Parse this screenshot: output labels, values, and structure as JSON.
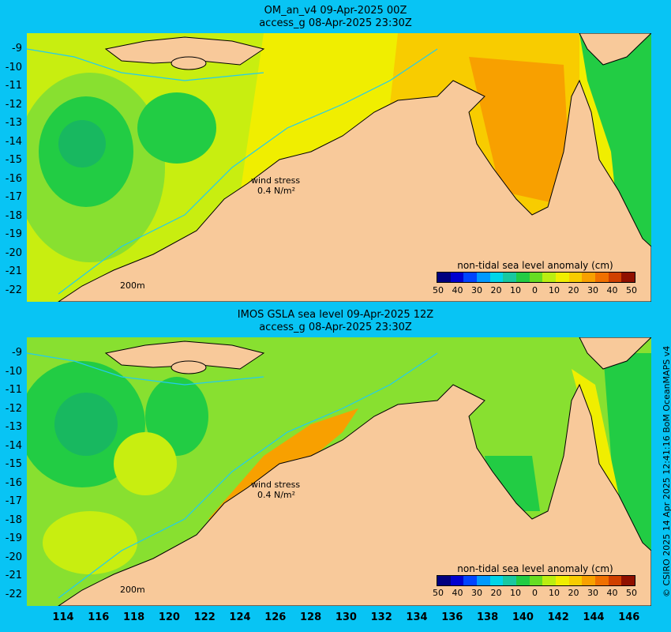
{
  "panels": [
    {
      "title_line1": "OM_an_v4  09-Apr-2025 00Z",
      "title_line2": "access_g 08-Apr-2025 23:30Z"
    },
    {
      "title_line1": "IMOS GSLA sea level  09-Apr-2025 12Z",
      "title_line2": "access_g 08-Apr-2025 23:30Z"
    }
  ],
  "y_ticks": [
    "-9",
    "-10",
    "-11",
    "-12",
    "-13",
    "-14",
    "-15",
    "-16",
    "-17",
    "-18",
    "-19",
    "-20",
    "-21",
    "-22"
  ],
  "x_ticks": [
    "114",
    "116",
    "118",
    "120",
    "122",
    "124",
    "126",
    "128",
    "130",
    "132",
    "134",
    "136",
    "138",
    "140",
    "142",
    "144",
    "146"
  ],
  "wind_stress_label": "wind stress",
  "wind_stress_value": "0.4 N/m²",
  "isobath_label": "200m",
  "colorbar": {
    "title": "non-tidal sea level anomaly (cm)",
    "ticks": [
      "50",
      "40",
      "30",
      "20",
      "10",
      "0",
      "10",
      "20",
      "30",
      "40",
      "50"
    ],
    "colors": [
      "#00007f",
      "#0000d0",
      "#0044ff",
      "#0099ff",
      "#00d5e8",
      "#18c8a0",
      "#22cc44",
      "#66dd22",
      "#bbee11",
      "#f0ee00",
      "#f8cc00",
      "#f8a000",
      "#f07000",
      "#d04000",
      "#901000"
    ]
  },
  "colors": {
    "ocean_green": "#22cc44",
    "ocean_light": "#88e030",
    "ocean_yellowgreen": "#c8ee10",
    "ocean_yellow": "#f0ee00",
    "ocean_orange": "#f8b400",
    "land": "#f8c99a",
    "isobath": "#22ccee"
  },
  "credit": "© CSIRO 2025  14 Apr 2025 12:41:16 BoM OceanMAPS v4"
}
